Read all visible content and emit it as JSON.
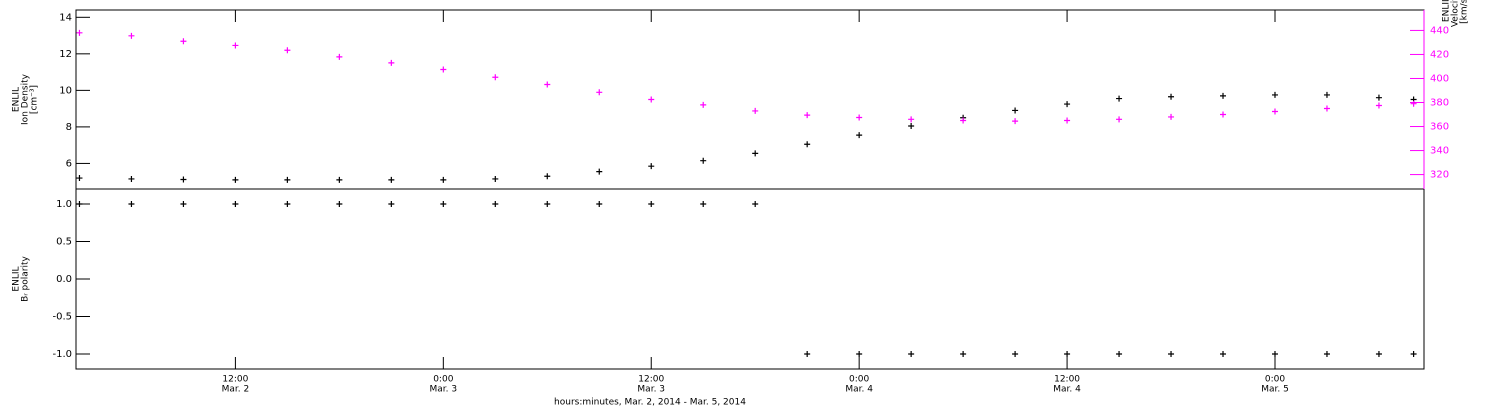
{
  "chart_data": [
    {
      "type": "scatter",
      "ylabel": [
        "ENLIL",
        "Ion Density",
        "[cm⁻³]"
      ],
      "y2label": [
        "ENLIL",
        "Velocity",
        "[km/s]"
      ],
      "x": [
        3,
        6,
        9,
        12,
        15,
        18,
        21,
        24,
        27,
        30,
        33,
        36,
        39,
        42,
        45,
        48,
        51,
        54,
        57,
        60,
        63,
        66,
        69,
        72,
        75,
        78,
        80
      ],
      "xlim": [
        2.8,
        80.6
      ],
      "ylim": [
        4.6,
        14.4
      ],
      "yticks": [
        6,
        8,
        10,
        12,
        14
      ],
      "y2lim": [
        308,
        457
      ],
      "y2ticks": [
        320,
        340,
        360,
        380,
        400,
        420,
        440
      ],
      "y2color": "#ff00ff",
      "series": [
        {
          "name": "Ion Density",
          "color": "#000000",
          "values": [
            5.2,
            5.15,
            5.12,
            5.1,
            5.1,
            5.1,
            5.1,
            5.1,
            5.15,
            5.3,
            5.55,
            5.85,
            6.15,
            6.55,
            7.05,
            7.55,
            8.05,
            8.5,
            8.9,
            9.25,
            9.55,
            9.65,
            9.7,
            9.75,
            9.75,
            9.6,
            9.5
          ]
        },
        {
          "name": "Velocity",
          "color": "#ff00ff",
          "axis": "y2",
          "values": [
            438,
            435.5,
            431,
            427.5,
            423.5,
            418,
            413,
            407.5,
            401,
            395,
            388.5,
            382.5,
            378,
            373,
            369.5,
            367.5,
            366,
            365,
            364.5,
            365,
            366,
            368,
            370,
            372.5,
            375,
            377.5,
            379
          ]
        }
      ]
    },
    {
      "type": "scatter",
      "ylabel": [
        "ENLIL",
        "Bᵣ polarity"
      ],
      "xlabel": "hours:minutes, Mar.  2, 2014 - Mar.  5, 2014",
      "x": [
        3,
        6,
        9,
        12,
        15,
        18,
        21,
        24,
        27,
        30,
        33,
        36,
        39,
        42,
        45,
        48,
        51,
        54,
        57,
        60,
        63,
        66,
        69,
        72,
        75,
        78,
        80
      ],
      "xlim": [
        2.8,
        80.6
      ],
      "xticks": [
        {
          "value": 12,
          "label": "12:00",
          "date": "Mar. 2"
        },
        {
          "value": 24,
          "label": "0:00",
          "date": "Mar. 3"
        },
        {
          "value": 36,
          "label": "12:00",
          "date": "Mar. 3"
        },
        {
          "value": 48,
          "label": "0:00",
          "date": "Mar. 4"
        },
        {
          "value": 60,
          "label": "12:00",
          "date": "Mar. 4"
        },
        {
          "value": 72,
          "label": "0:00",
          "date": "Mar. 5"
        }
      ],
      "ylim": [
        -1.2,
        1.2
      ],
      "yticks": [
        {
          "value": 1,
          "label": "1.0"
        },
        {
          "value": 0.5,
          "label": "0.5"
        },
        {
          "value": 0,
          "label": "0.0"
        },
        {
          "value": -0.5,
          "label": "-0.5"
        },
        {
          "value": -1,
          "label": "-1.0"
        }
      ],
      "series": [
        {
          "name": "Bᵣ polarity",
          "color": "#000000",
          "values": [
            1,
            1,
            1,
            1,
            1,
            1,
            1,
            1,
            1,
            1,
            1,
            1,
            1,
            1,
            -1,
            -1,
            -1,
            -1,
            -1,
            -1,
            -1,
            -1,
            -1,
            -1,
            -1,
            -1,
            -1
          ]
        }
      ]
    }
  ]
}
